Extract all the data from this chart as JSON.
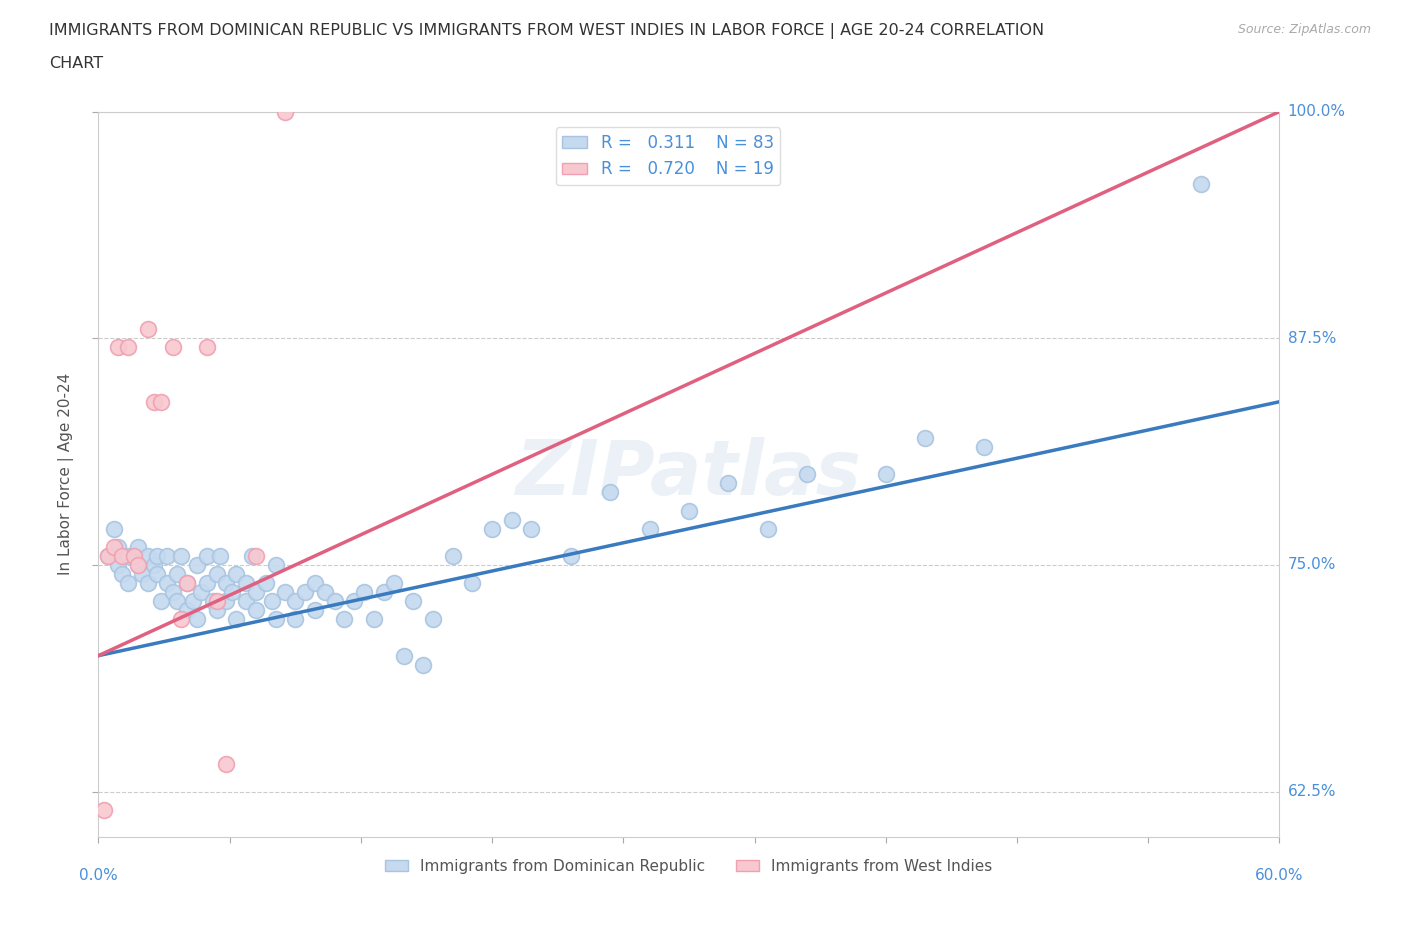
{
  "title_line1": "IMMIGRANTS FROM DOMINICAN REPUBLIC VS IMMIGRANTS FROM WEST INDIES IN LABOR FORCE | AGE 20-24 CORRELATION",
  "title_line2": "CHART",
  "source": "Source: ZipAtlas.com",
  "ylabel_label": "In Labor Force | Age 20-24",
  "xmin": 0.0,
  "xmax": 0.6,
  "ymin": 0.6,
  "ymax": 1.0,
  "yticks": [
    0.625,
    0.75,
    0.875,
    1.0
  ],
  "legend_blue_r": "0.311",
  "legend_blue_n": "83",
  "legend_pink_r": "0.720",
  "legend_pink_n": "19",
  "blue_color": "#a8c4e0",
  "blue_fill": "#c5d9ef",
  "pink_color": "#f0a0b0",
  "pink_fill": "#f8c8d0",
  "blue_line_color": "#3a7abf",
  "pink_line_color": "#e06080",
  "watermark": "ZIPatlas",
  "blue_scatter_x": [
    0.005,
    0.008,
    0.01,
    0.01,
    0.012,
    0.015,
    0.015,
    0.018,
    0.02,
    0.02,
    0.022,
    0.025,
    0.025,
    0.028,
    0.03,
    0.03,
    0.032,
    0.035,
    0.035,
    0.038,
    0.04,
    0.04,
    0.042,
    0.045,
    0.045,
    0.048,
    0.05,
    0.05,
    0.052,
    0.055,
    0.055,
    0.058,
    0.06,
    0.06,
    0.062,
    0.065,
    0.065,
    0.068,
    0.07,
    0.07,
    0.075,
    0.075,
    0.078,
    0.08,
    0.08,
    0.085,
    0.088,
    0.09,
    0.09,
    0.095,
    0.1,
    0.1,
    0.105,
    0.11,
    0.11,
    0.115,
    0.12,
    0.125,
    0.13,
    0.135,
    0.14,
    0.145,
    0.15,
    0.155,
    0.16,
    0.165,
    0.17,
    0.18,
    0.19,
    0.2,
    0.21,
    0.22,
    0.24,
    0.26,
    0.28,
    0.3,
    0.32,
    0.34,
    0.36,
    0.4,
    0.42,
    0.45,
    0.56
  ],
  "blue_scatter_y": [
    0.755,
    0.77,
    0.76,
    0.75,
    0.745,
    0.755,
    0.74,
    0.755,
    0.75,
    0.76,
    0.745,
    0.755,
    0.74,
    0.75,
    0.745,
    0.755,
    0.73,
    0.74,
    0.755,
    0.735,
    0.73,
    0.745,
    0.755,
    0.725,
    0.74,
    0.73,
    0.72,
    0.75,
    0.735,
    0.74,
    0.755,
    0.73,
    0.725,
    0.745,
    0.755,
    0.73,
    0.74,
    0.735,
    0.72,
    0.745,
    0.73,
    0.74,
    0.755,
    0.725,
    0.735,
    0.74,
    0.73,
    0.72,
    0.75,
    0.735,
    0.73,
    0.72,
    0.735,
    0.74,
    0.725,
    0.735,
    0.73,
    0.72,
    0.73,
    0.735,
    0.72,
    0.735,
    0.74,
    0.7,
    0.73,
    0.695,
    0.72,
    0.755,
    0.74,
    0.77,
    0.775,
    0.77,
    0.755,
    0.79,
    0.77,
    0.78,
    0.795,
    0.77,
    0.8,
    0.8,
    0.82,
    0.815,
    0.96
  ],
  "pink_scatter_x": [
    0.003,
    0.005,
    0.008,
    0.01,
    0.012,
    0.015,
    0.018,
    0.02,
    0.025,
    0.028,
    0.032,
    0.038,
    0.042,
    0.045,
    0.055,
    0.06,
    0.065,
    0.08,
    0.095
  ],
  "pink_scatter_y": [
    0.615,
    0.755,
    0.76,
    0.87,
    0.755,
    0.87,
    0.755,
    0.75,
    0.88,
    0.84,
    0.84,
    0.87,
    0.72,
    0.74,
    0.87,
    0.73,
    0.64,
    0.755,
    1.0
  ],
  "blue_trendline_x": [
    0.0,
    0.6
  ],
  "blue_trendline_y": [
    0.7,
    0.84
  ],
  "pink_trendline_x": [
    0.0,
    0.6
  ],
  "pink_trendline_y": [
    0.7,
    1.0
  ]
}
